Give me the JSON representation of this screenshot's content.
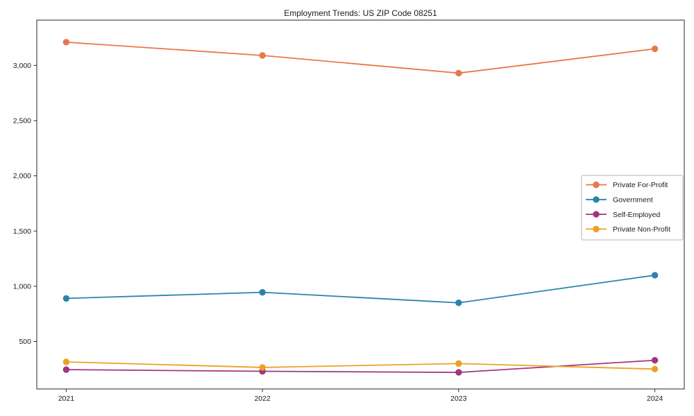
{
  "page": {
    "background": "#ffffff"
  },
  "chart_data": {
    "type": "line",
    "title": "Employment Trends: US ZIP Code 08251",
    "xlabel": "",
    "ylabel": "",
    "x": [
      "2021",
      "2022",
      "2023",
      "2024"
    ],
    "series": [
      {
        "name": "Private For-Profit",
        "color": "#e8774b",
        "values": [
          3210,
          3090,
          2930,
          3150
        ]
      },
      {
        "name": "Government",
        "color": "#2b83ab",
        "values": [
          890,
          945,
          850,
          1100
        ]
      },
      {
        "name": "Self-Employed",
        "color": "#a2357f",
        "values": [
          245,
          230,
          220,
          330
        ]
      },
      {
        "name": "Private Non-Profit",
        "color": "#eca121",
        "values": [
          315,
          265,
          300,
          250
        ]
      }
    ],
    "yticks": [
      500,
      1000,
      1500,
      2000,
      2500,
      3000
    ],
    "ytick_labels": [
      "500",
      "1,000",
      "1,500",
      "2,000",
      "2,500",
      "3,000"
    ],
    "ylim": [
      70,
      3410
    ],
    "grid": false,
    "legend": {
      "position": "center-right",
      "entries": [
        "Private For-Profit",
        "Government",
        "Self-Employed",
        "Private Non-Profit"
      ],
      "border_color": "#b3b3b3",
      "background": "#ffffff"
    },
    "axis_color": "#262626",
    "text_color": "#1a1a1a",
    "marker": "circle"
  }
}
